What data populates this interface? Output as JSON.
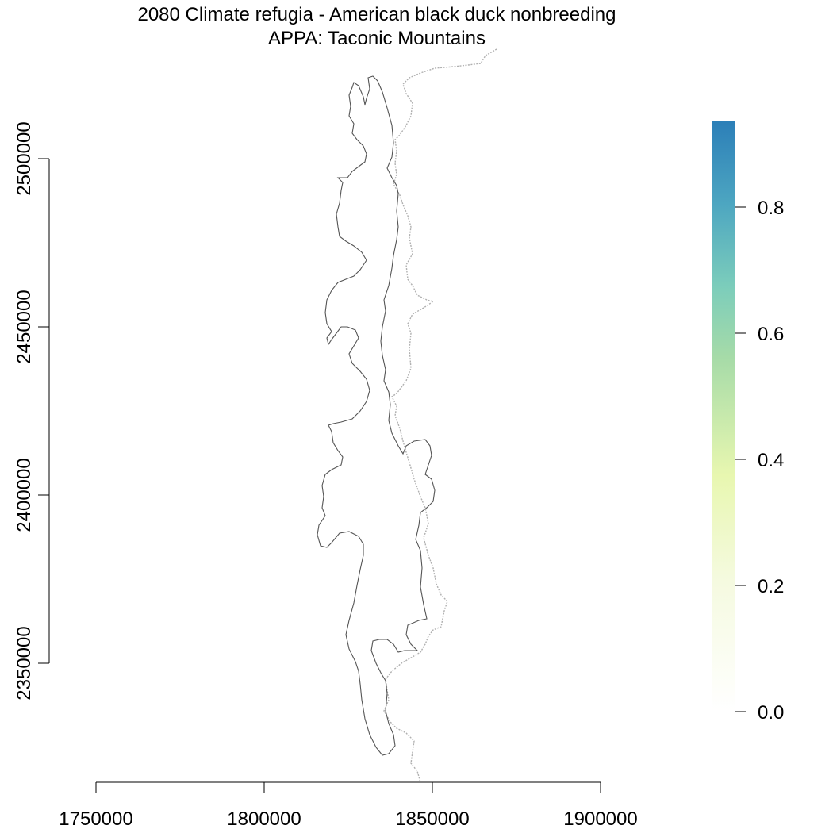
{
  "title": {
    "line1": "2080 Climate refugia - American black duck nonbreeding",
    "line2": "APPA: Taconic Mountains"
  },
  "map": {
    "x_axis": {
      "ticks": [
        "1750000",
        "1800000",
        "1850000",
        "1900000"
      ]
    },
    "y_axis": {
      "ticks": [
        "2350000",
        "2400000",
        "2450000",
        "2500000"
      ]
    },
    "outline_color": "#555555",
    "boundary_color": "#b0b0b0",
    "boundary_style": "dashed"
  },
  "legend": {
    "labels": [
      "0.0",
      "0.2",
      "0.4",
      "0.6",
      "0.8"
    ],
    "colors": [
      "#ffffff",
      "#f5fae0",
      "#e8f7b0",
      "#a6dba8",
      "#7ccdbb",
      "#4da6c1",
      "#2c7fb8"
    ]
  }
}
